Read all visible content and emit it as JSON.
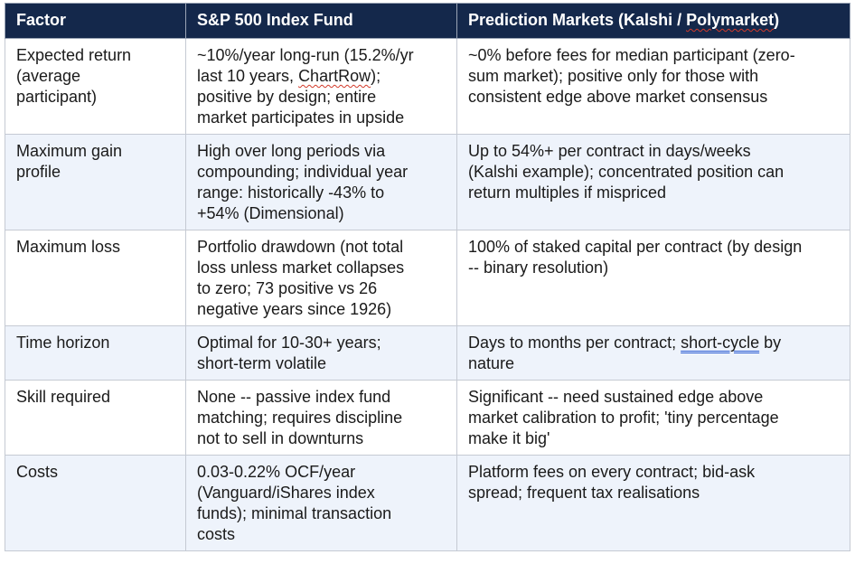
{
  "table": {
    "headers": [
      "Factor",
      "S&P 500 Index Fund",
      "Prediction Markets (Kalshi / Polymarket)"
    ],
    "rows": [
      {
        "factor": "Expected return\n(average\nparticipant)",
        "sp500": {
          "pre": "~10%/year long-run (15.2%/yr\nlast 10 years, ",
          "mark": "ChartRow",
          "post": ");\npositive by design; entire\nmarket participates in upside"
        },
        "prediction": "~0% before fees for median participant (zero-\nsum market); positive only for those with\nconsistent edge above market consensus"
      },
      {
        "factor": "Maximum gain\nprofile",
        "sp500": "High over long periods via\ncompounding; individual year\nrange: historically -43% to\n+54% (Dimensional)",
        "prediction": "Up to 54%+ per contract in days/weeks\n(Kalshi example); concentrated position can\nreturn multiples if mispriced"
      },
      {
        "factor": "Maximum loss",
        "sp500": "Portfolio drawdown (not total\nloss unless market collapses\nto zero; 73 positive vs 26\nnegative years since 1926)",
        "prediction": "100% of staked capital per contract (by design\n-- binary resolution)"
      },
      {
        "factor": "Time horizon",
        "sp500": "Optimal for 10-30+ years;\nshort-term volatile",
        "prediction": {
          "pre": "Days to months per contract; ",
          "mark": "short-cycle",
          "post": " by\nnature"
        }
      },
      {
        "factor": "Skill required",
        "sp500": "None -- passive index fund\nmatching; requires discipline\nnot to sell in downturns",
        "prediction": "Significant -- need sustained edge above\nmarket calibration to profit; 'tiny percentage\nmake it big'"
      },
      {
        "factor": "Costs",
        "sp500": "0.03-0.22% OCF/year\n(Vanguard/iShares index\nfunds); minimal transaction\ncosts",
        "prediction": "Platform fees on every contract; bid-ask\nspread; frequent tax realisations"
      }
    ],
    "header_spellmark": {
      "pre": "Prediction Markets (Kalshi / ",
      "mark": "Polymarket",
      "post": ")"
    }
  },
  "colors": {
    "header_bg": "#14284b",
    "alt_row_bg": "#eef3fb",
    "spell_underline": "#d23a2a",
    "grammar_underline": "#2a5bd2"
  }
}
